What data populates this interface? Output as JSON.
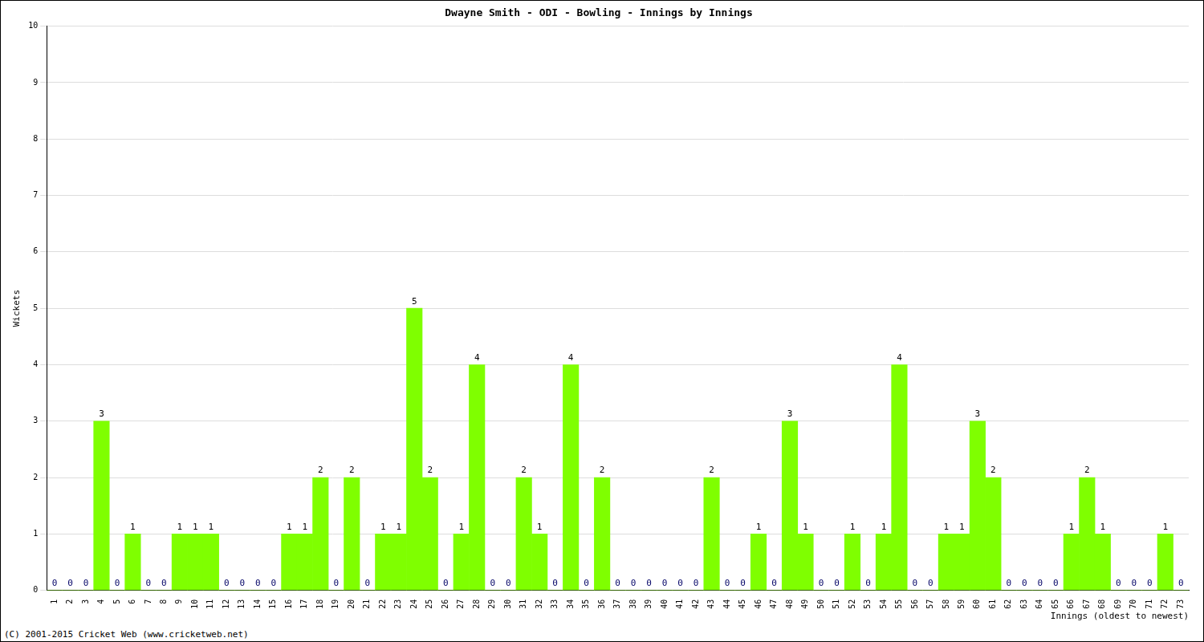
{
  "chart_data": {
    "type": "bar",
    "title": "Dwayne Smith - ODI - Bowling - Innings by Innings",
    "x_label": "Innings (oldest to newest)",
    "y_label": "Wickets",
    "annotations": [
      "(C) 2001-2015 Cricket Web (www.cricketweb.net)"
    ],
    "categories": [
      "1",
      "2",
      "3",
      "4",
      "5",
      "6",
      "7",
      "8",
      "9",
      "10",
      "11",
      "12",
      "13",
      "14",
      "15",
      "16",
      "17",
      "18",
      "19",
      "20",
      "21",
      "22",
      "23",
      "24",
      "25",
      "26",
      "27",
      "28",
      "29",
      "30",
      "31",
      "32",
      "33",
      "34",
      "35",
      "36",
      "37",
      "38",
      "39",
      "40",
      "41",
      "42",
      "43",
      "44",
      "45",
      "46",
      "47",
      "48",
      "49",
      "50",
      "51",
      "52",
      "53",
      "54",
      "55",
      "56",
      "57",
      "58",
      "59",
      "60",
      "61",
      "62",
      "63",
      "64",
      "65",
      "66",
      "67",
      "68",
      "69",
      "70",
      "71",
      "72",
      "73"
    ],
    "values": [
      0,
      0,
      0,
      3,
      0,
      1,
      0,
      0,
      1,
      1,
      1,
      0,
      0,
      0,
      0,
      1,
      1,
      2,
      0,
      2,
      0,
      1,
      1,
      5,
      2,
      0,
      1,
      4,
      0,
      0,
      2,
      1,
      0,
      4,
      0,
      2,
      0,
      0,
      0,
      0,
      0,
      0,
      2,
      0,
      0,
      1,
      0,
      3,
      1,
      0,
      0,
      1,
      0,
      1,
      4,
      0,
      0,
      1,
      1,
      3,
      2,
      0,
      0,
      0,
      0,
      1,
      2,
      1,
      0,
      0,
      0,
      1,
      0
    ],
    "color": "#7fff00",
    "ylim": [
      0,
      10
    ],
    "yticks": [
      0,
      1,
      2,
      3,
      4,
      5,
      6,
      7,
      8,
      9,
      10
    ],
    "grid": true,
    "data_labels": true
  }
}
